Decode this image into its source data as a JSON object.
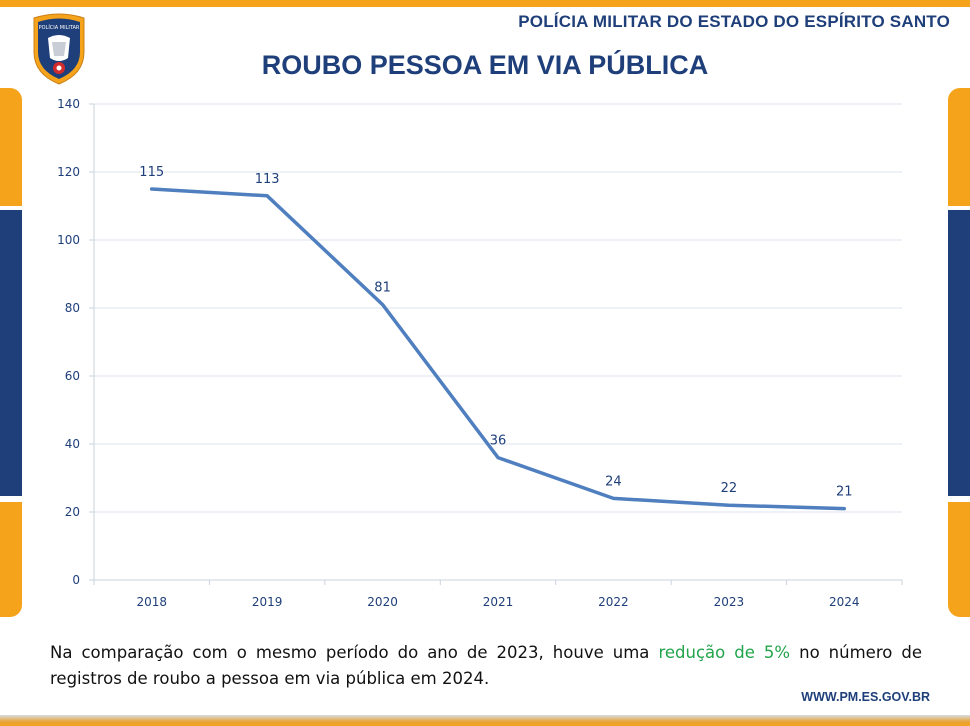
{
  "header": {
    "org_name": "POLÍCIA MILITAR DO ESTADO DO ESPÍRITO SANTO",
    "logo_text": "POLÍCIA MILITAR"
  },
  "chart_data": {
    "type": "line",
    "title": "ROUBO PESSOA EM VIA PÚBLICA",
    "categories": [
      "2018",
      "2019",
      "2020",
      "2021",
      "2022",
      "2023",
      "2024"
    ],
    "series": [
      {
        "values": [
          115,
          113,
          81,
          36,
          24,
          22,
          21
        ],
        "color": "#4f7fbf"
      }
    ],
    "ylim": [
      0,
      140
    ],
    "yticks": [
      0,
      20,
      40,
      60,
      80,
      100,
      120,
      140
    ],
    "grid": true,
    "data_labels": true
  },
  "caption": {
    "before": "Na comparação com o mesmo período do ano de 2023, houve uma ",
    "highlight": "redução de 5%",
    "after": " no número de registros de roubo a pessoa em via pública em 2024."
  },
  "footer": {
    "website": "WWW.PM.ES.GOV.BR"
  },
  "colors": {
    "brand_blue": "#1f3f7a",
    "accent_orange": "#f5a31a",
    "highlight_green": "#21a44a",
    "line": "#4f7fbf"
  }
}
